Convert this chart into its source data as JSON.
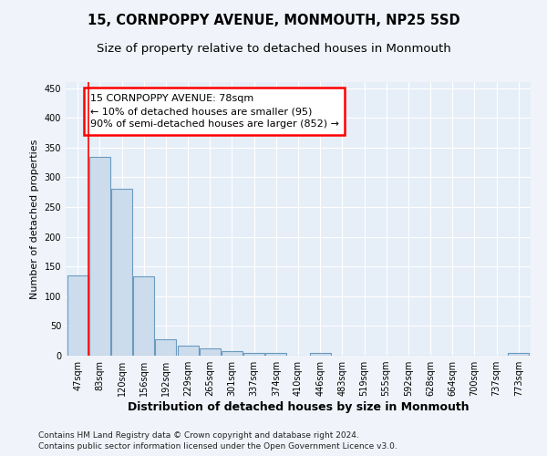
{
  "title": "15, CORNPOPPY AVENUE, MONMOUTH, NP25 5SD",
  "subtitle": "Size of property relative to detached houses in Monmouth",
  "xlabel": "Distribution of detached houses by size in Monmouth",
  "ylabel": "Number of detached properties",
  "bar_labels": [
    "47sqm",
    "83sqm",
    "120sqm",
    "156sqm",
    "192sqm",
    "229sqm",
    "265sqm",
    "301sqm",
    "337sqm",
    "374sqm",
    "410sqm",
    "446sqm",
    "483sqm",
    "519sqm",
    "555sqm",
    "592sqm",
    "628sqm",
    "664sqm",
    "700sqm",
    "737sqm",
    "773sqm"
  ],
  "bar_values": [
    135,
    335,
    280,
    133,
    27,
    17,
    12,
    7,
    5,
    4,
    0,
    4,
    0,
    0,
    0,
    0,
    0,
    0,
    0,
    0,
    4
  ],
  "bar_color": "#ccdcec",
  "bar_edge_color": "#6a9abf",
  "annotation_line1": "15 CORNPOPPY AVENUE: 78sqm",
  "annotation_line2": "← 10% of detached houses are smaller (95)",
  "annotation_line3": "90% of semi-detached houses are larger (852) →",
  "annotation_box_color": "white",
  "annotation_box_edge_color": "red",
  "vline_color": "red",
  "vline_x": 0.5,
  "ylim": [
    0,
    460
  ],
  "yticks": [
    0,
    50,
    100,
    150,
    200,
    250,
    300,
    350,
    400,
    450
  ],
  "footer1": "Contains HM Land Registry data © Crown copyright and database right 2024.",
  "footer2": "Contains public sector information licensed under the Open Government Licence v3.0.",
  "background_color": "#f0f4fa",
  "plot_bg_color": "#e6eff8",
  "grid_color": "white",
  "title_fontsize": 10.5,
  "subtitle_fontsize": 9.5,
  "xlabel_fontsize": 9,
  "ylabel_fontsize": 8,
  "tick_fontsize": 7,
  "footer_fontsize": 6.5,
  "annotation_fontsize": 8
}
